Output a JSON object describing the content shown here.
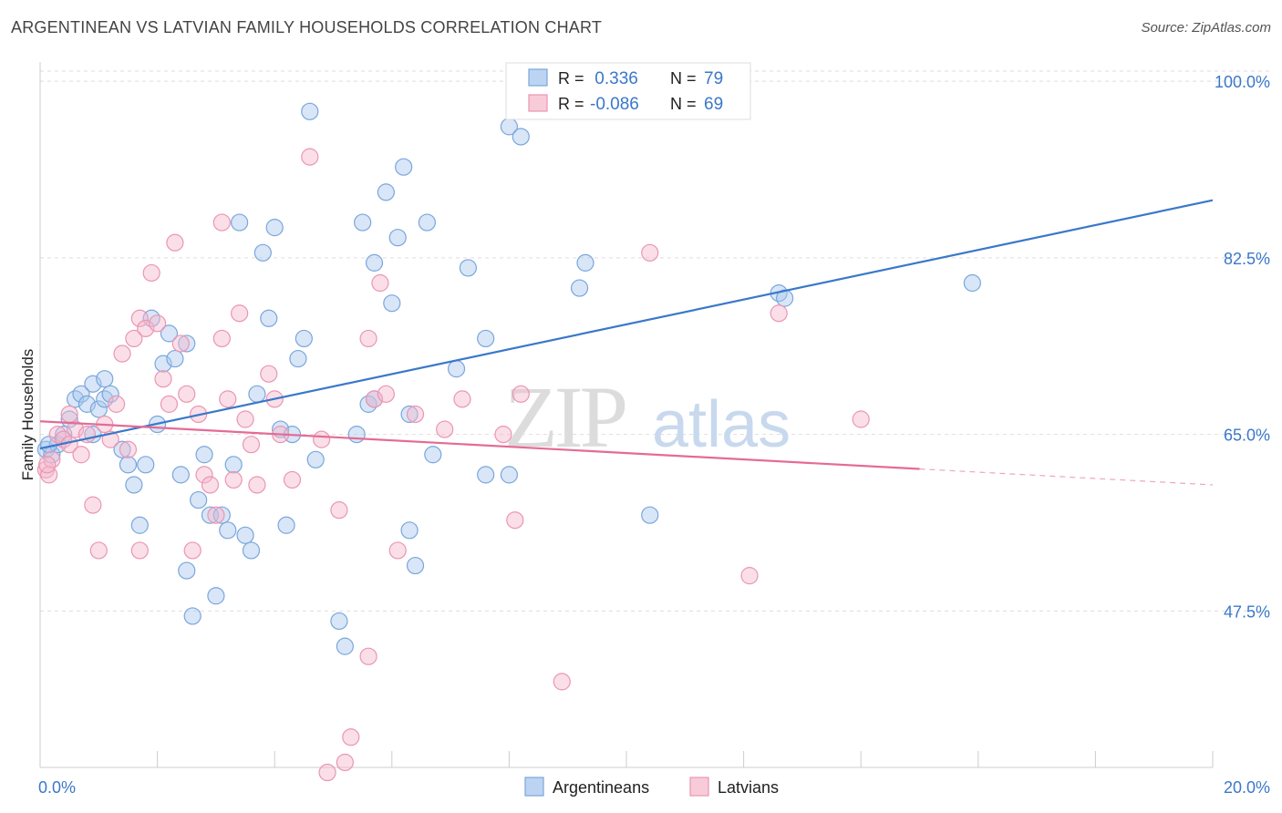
{
  "header": {
    "title": "ARGENTINEAN VS LATVIAN FAMILY HOUSEHOLDS CORRELATION CHART",
    "source": "Source: ZipAtlas.com"
  },
  "watermark": {
    "zip": "ZIP",
    "atlas": "atlas"
  },
  "colors": {
    "blue": "#3a78c9",
    "blue_fill": "#a9c8ee",
    "pink": "#e46b96",
    "pink_fill": "#f5b8cc",
    "axis_text": "#3a78c9"
  },
  "legend_top": {
    "rows": [
      {
        "r_label": "R =",
        "r_value": " 0.336",
        "n_label": "N =",
        "n_value": "79",
        "series": "blue"
      },
      {
        "r_label": "R =",
        "r_value": "-0.086",
        "n_label": "N =",
        "n_value": "69",
        "series": "pink"
      }
    ]
  },
  "legend_bottom": {
    "items": [
      "Argentineans",
      "Latvians"
    ]
  },
  "chart_data": {
    "type": "scatter",
    "ylabel": "Family Households",
    "xlim": [
      0,
      20
    ],
    "ylim": [
      32,
      101
    ],
    "x_tick_labels": [
      "0.0%",
      "20.0%"
    ],
    "y_ticks": [
      47.5,
      65.0,
      82.5,
      100.0
    ],
    "y_tick_labels": [
      "47.5%",
      "65.0%",
      "82.5%",
      "100.0%"
    ],
    "grid": true,
    "series": [
      {
        "name": "Argentineans",
        "color": "#3a78c9",
        "trend": {
          "x": [
            0.0,
            20.0
          ],
          "y": [
            63.6,
            88.2
          ],
          "dashed_from": null
        },
        "points": [
          [
            0.1,
            63.5
          ],
          [
            0.2,
            63.0
          ],
          [
            0.3,
            64.0
          ],
          [
            0.4,
            65.0
          ],
          [
            0.5,
            66.5
          ],
          [
            0.6,
            68.5
          ],
          [
            0.7,
            69.0
          ],
          [
            0.8,
            68.0
          ],
          [
            0.9,
            65.0
          ],
          [
            0.9,
            70.0
          ],
          [
            1.0,
            67.5
          ],
          [
            1.1,
            68.5
          ],
          [
            1.1,
            70.5
          ],
          [
            1.2,
            69.0
          ],
          [
            1.4,
            63.5
          ],
          [
            1.5,
            62.0
          ],
          [
            1.6,
            60.0
          ],
          [
            1.7,
            56.0
          ],
          [
            1.8,
            62.0
          ],
          [
            1.9,
            76.5
          ],
          [
            2.0,
            66.0
          ],
          [
            2.1,
            72.0
          ],
          [
            2.2,
            75.0
          ],
          [
            2.3,
            72.5
          ],
          [
            2.4,
            61.0
          ],
          [
            2.5,
            74.0
          ],
          [
            2.5,
            51.5
          ],
          [
            2.6,
            47.0
          ],
          [
            2.7,
            58.5
          ],
          [
            2.8,
            63.0
          ],
          [
            2.9,
            57.0
          ],
          [
            3.0,
            49.0
          ],
          [
            3.1,
            57.0
          ],
          [
            3.2,
            55.5
          ],
          [
            3.3,
            62.0
          ],
          [
            3.4,
            86.0
          ],
          [
            3.5,
            55.0
          ],
          [
            3.6,
            53.5
          ],
          [
            3.7,
            69.0
          ],
          [
            3.8,
            83.0
          ],
          [
            3.9,
            76.5
          ],
          [
            4.0,
            85.5
          ],
          [
            4.1,
            65.5
          ],
          [
            4.2,
            56.0
          ],
          [
            4.3,
            65.0
          ],
          [
            4.4,
            72.5
          ],
          [
            4.5,
            74.5
          ],
          [
            4.6,
            97.0
          ],
          [
            4.7,
            62.5
          ],
          [
            5.1,
            46.5
          ],
          [
            5.2,
            44.0
          ],
          [
            5.4,
            65.0
          ],
          [
            5.5,
            86.0
          ],
          [
            5.7,
            82.0
          ],
          [
            5.6,
            68.0
          ],
          [
            5.7,
            68.5
          ],
          [
            5.9,
            89.0
          ],
          [
            6.0,
            78.0
          ],
          [
            6.1,
            84.5
          ],
          [
            6.2,
            91.5
          ],
          [
            6.3,
            67.0
          ],
          [
            6.3,
            55.5
          ],
          [
            6.4,
            52.0
          ],
          [
            6.6,
            86.0
          ],
          [
            6.7,
            63.0
          ],
          [
            7.1,
            71.5
          ],
          [
            7.3,
            81.5
          ],
          [
            7.6,
            61.0
          ],
          [
            7.6,
            74.5
          ],
          [
            8.0,
            61.0
          ],
          [
            8.0,
            95.5
          ],
          [
            8.2,
            94.5
          ],
          [
            9.2,
            79.5
          ],
          [
            9.3,
            82.0
          ],
          [
            10.4,
            57.0
          ],
          [
            12.6,
            79.0
          ],
          [
            12.7,
            78.5
          ],
          [
            15.9,
            80.0
          ],
          [
            0.15,
            64.0
          ]
        ]
      },
      {
        "name": "Latvians",
        "color": "#e46b96",
        "trend": {
          "x": [
            0.0,
            20.0
          ],
          "y": [
            66.3,
            60.0
          ],
          "dashed_from": 15.0
        },
        "points": [
          [
            0.1,
            61.5
          ],
          [
            0.2,
            62.5
          ],
          [
            0.3,
            65.0
          ],
          [
            0.4,
            64.5
          ],
          [
            0.5,
            67.0
          ],
          [
            0.5,
            64.0
          ],
          [
            0.6,
            65.5
          ],
          [
            0.7,
            63.0
          ],
          [
            0.8,
            65.0
          ],
          [
            0.9,
            58.0
          ],
          [
            1.0,
            53.5
          ],
          [
            1.1,
            66.0
          ],
          [
            1.2,
            64.5
          ],
          [
            1.3,
            68.0
          ],
          [
            1.4,
            73.0
          ],
          [
            1.5,
            63.5
          ],
          [
            1.6,
            74.5
          ],
          [
            1.7,
            76.5
          ],
          [
            1.7,
            53.5
          ],
          [
            1.8,
            75.5
          ],
          [
            1.9,
            81.0
          ],
          [
            2.0,
            76.0
          ],
          [
            2.1,
            70.5
          ],
          [
            2.2,
            68.0
          ],
          [
            2.3,
            84.0
          ],
          [
            2.4,
            74.0
          ],
          [
            2.5,
            69.0
          ],
          [
            2.6,
            53.5
          ],
          [
            2.7,
            67.0
          ],
          [
            2.8,
            61.0
          ],
          [
            2.9,
            60.0
          ],
          [
            3.0,
            57.0
          ],
          [
            3.1,
            86.0
          ],
          [
            3.1,
            74.5
          ],
          [
            3.2,
            68.5
          ],
          [
            3.3,
            60.5
          ],
          [
            3.4,
            77.0
          ],
          [
            3.5,
            66.5
          ],
          [
            3.6,
            64.0
          ],
          [
            3.7,
            60.0
          ],
          [
            3.9,
            71.0
          ],
          [
            4.0,
            68.5
          ],
          [
            4.1,
            65.0
          ],
          [
            4.3,
            60.5
          ],
          [
            4.6,
            92.5
          ],
          [
            4.8,
            64.5
          ],
          [
            4.9,
            31.5
          ],
          [
            5.1,
            57.5
          ],
          [
            5.2,
            32.5
          ],
          [
            5.3,
            35.0
          ],
          [
            5.6,
            43.0
          ],
          [
            5.6,
            74.5
          ],
          [
            5.7,
            68.5
          ],
          [
            5.8,
            80.0
          ],
          [
            5.9,
            69.0
          ],
          [
            6.1,
            53.5
          ],
          [
            6.4,
            67.0
          ],
          [
            6.9,
            65.5
          ],
          [
            7.2,
            68.5
          ],
          [
            7.9,
            65.0
          ],
          [
            8.1,
            56.5
          ],
          [
            8.2,
            69.0
          ],
          [
            8.9,
            40.5
          ],
          [
            10.4,
            83.0
          ],
          [
            12.1,
            51.0
          ],
          [
            12.6,
            77.0
          ],
          [
            14.0,
            66.5
          ],
          [
            0.15,
            61.0
          ],
          [
            0.12,
            62.0
          ]
        ]
      }
    ]
  }
}
